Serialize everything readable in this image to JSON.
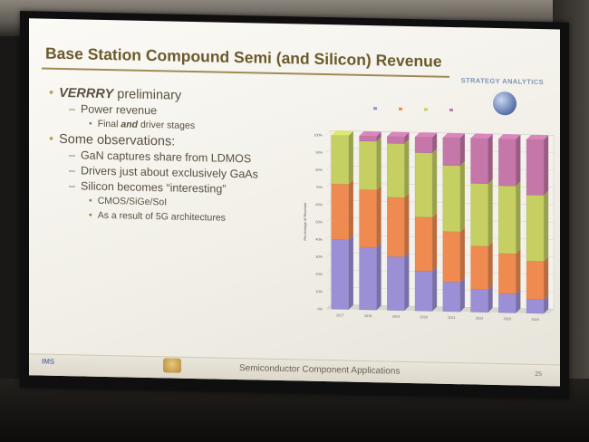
{
  "slide": {
    "title": "Base Station Compound Semi (and Silicon) Revenue",
    "logo_text": "STRATEGY ANALYTICS",
    "footer": "Semiconductor Component Applications",
    "page_number": "25",
    "ims_logo": "IMS",
    "colors": {
      "title": "#6b5a2c",
      "background": "#f4f2ea",
      "bullet_marker": "#b9a35c"
    },
    "bullets": [
      {
        "level": 1,
        "pre": "",
        "emph": "VERRRY",
        "post": " preliminary"
      },
      {
        "level": 2,
        "text": "Power revenue"
      },
      {
        "level": 3,
        "pre": "Final ",
        "emph": "and",
        "post": " driver stages"
      },
      {
        "level": 1,
        "text": "Some observations:"
      },
      {
        "level": 2,
        "text": "GaN captures share from LDMOS"
      },
      {
        "level": 2,
        "text": "Drivers just about exclusively GaAs"
      },
      {
        "level": 2,
        "text": "Silicon becomes “interesting”"
      },
      {
        "level": 3,
        "text": "CMOS/SiGe/SoI"
      },
      {
        "level": 3,
        "text": "As a result of 5G architectures"
      }
    ]
  },
  "chart_data": {
    "type": "bar",
    "stacked": true,
    "categories": [
      "2017",
      "2018",
      "2019",
      "2020",
      "2021",
      "2022",
      "2023",
      "2024"
    ],
    "y_axis_label": "Percentage of Revenue",
    "ylim": [
      0,
      100
    ],
    "y_ticks": [
      "0%",
      "10%",
      "20%",
      "30%",
      "40%",
      "50%",
      "60%",
      "70%",
      "80%",
      "90%",
      "100%"
    ],
    "legend_placement": "top",
    "series": [
      {
        "color": "#9b8fd6",
        "values": [
          40,
          36,
          31,
          23,
          17,
          13,
          11,
          8
        ]
      },
      {
        "color": "#ef8a50",
        "values": [
          32,
          33,
          34,
          31,
          29,
          25,
          23,
          22
        ]
      },
      {
        "color": "#c6cf62",
        "values": [
          28,
          28,
          31,
          37,
          38,
          36,
          39,
          38
        ]
      },
      {
        "color": "#c477a8",
        "values": [
          0,
          3,
          4,
          9,
          16,
          26,
          27,
          32
        ]
      }
    ]
  }
}
